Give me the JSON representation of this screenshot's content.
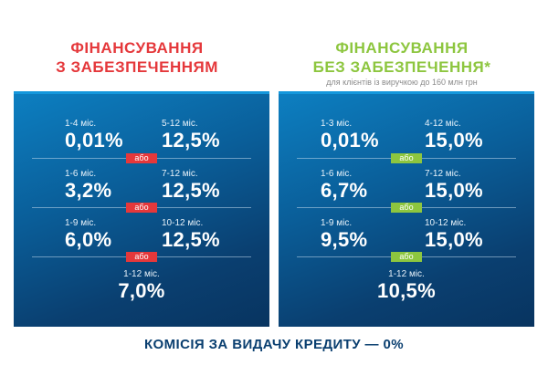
{
  "left": {
    "title_line1": "ФІНАНСУВАННЯ",
    "title_line2": "З ЗАБЕЗПЕЧЕННЯМ",
    "rows": [
      {
        "a_label": "1-4 міс.",
        "a_value": "0,01%",
        "b_label": "5-12 міс.",
        "b_value": "12,5%"
      },
      {
        "a_label": "1-6 міс.",
        "a_value": "3,2%",
        "b_label": "7-12 міс.",
        "b_value": "12,5%"
      },
      {
        "a_label": "1-9 міс.",
        "a_value": "6,0%",
        "b_label": "10-12 міс.",
        "b_value": "12,5%"
      }
    ],
    "separator_label": "або",
    "single": {
      "label": "1-12 міс.",
      "value": "7,0%"
    }
  },
  "right": {
    "title_line1": "ФІНАНСУВАННЯ",
    "title_line2": "БЕЗ ЗАБЕЗПЕЧЕННЯ*",
    "note": "для клієнтів із виручкою до 160 млн грн",
    "rows": [
      {
        "a_label": "1-3 міс.",
        "a_value": "0,01%",
        "b_label": "4-12 міс.",
        "b_value": "15,0%"
      },
      {
        "a_label": "1-6 міс.",
        "a_value": "6,7%",
        "b_label": "7-12 міс.",
        "b_value": "15,0%"
      },
      {
        "a_label": "1-9 міс.",
        "a_value": "9,5%",
        "b_label": "10-12 міс.",
        "b_value": "15,0%"
      }
    ],
    "separator_label": "або",
    "single": {
      "label": "1-12 міс.",
      "value": "10,5%"
    }
  },
  "footer": "КОМІСІЯ ЗА ВИДАЧУ КРЕДИТУ — 0%",
  "colors": {
    "red_accent": "#e5383b",
    "green_accent": "#8dc63f",
    "panel_blue": "#0a5e99",
    "footer_navy": "#0a3f70"
  }
}
